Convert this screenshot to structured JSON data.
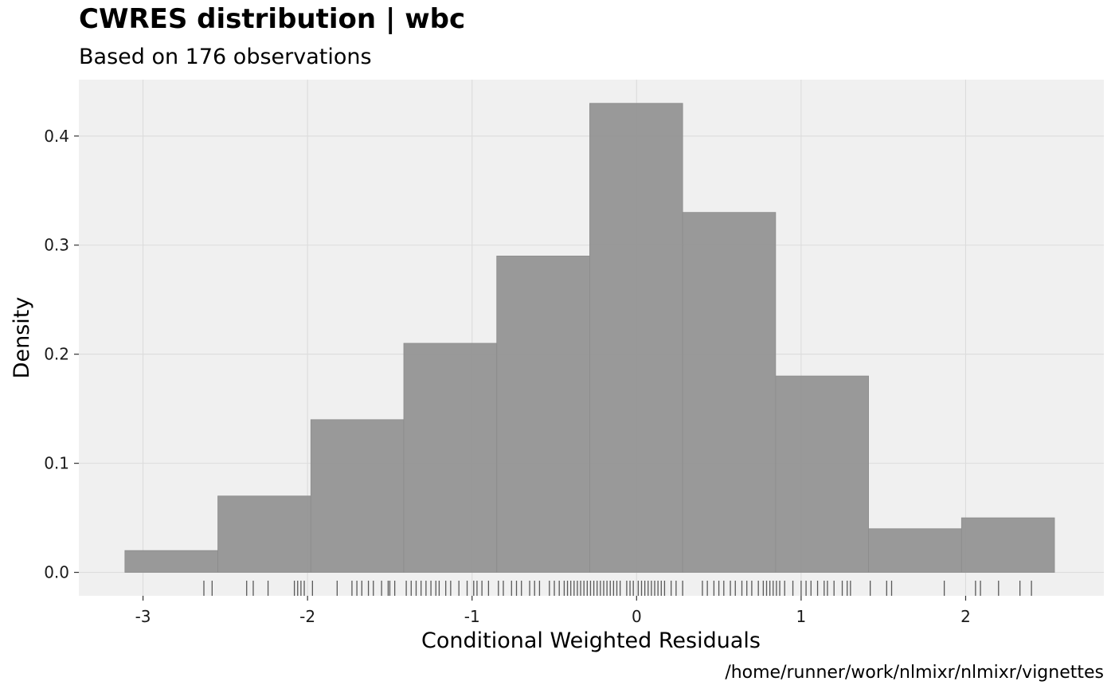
{
  "chart_data": {
    "type": "histogram",
    "title": "CWRES distribution | wbc",
    "subtitle": "Based on 176 observations",
    "xlabel": "Conditional Weighted Residuals",
    "ylabel": "Density",
    "caption": "/home/runner/work/nlmixr/nlmixr/vignettes",
    "xlim": [
      -3.39,
      2.84
    ],
    "ylim": [
      -0.0215,
      0.4517
    ],
    "x_ticks": [
      -3,
      -2,
      -1,
      0,
      1,
      2
    ],
    "x_tick_labels": [
      "-3",
      "-2",
      "-1",
      "0",
      "1",
      "2"
    ],
    "y_ticks": [
      0.0,
      0.1,
      0.2,
      0.3,
      0.4
    ],
    "y_tick_labels": [
      "0.0",
      "0.1",
      "0.2",
      "0.3",
      "0.4"
    ],
    "grid": true,
    "bins": [
      {
        "x0": -3.11,
        "x1": -2.545,
        "density": 0.02
      },
      {
        "x0": -2.545,
        "x1": -1.98,
        "density": 0.07
      },
      {
        "x0": -1.98,
        "x1": -1.415,
        "density": 0.14
      },
      {
        "x0": -1.415,
        "x1": -0.85,
        "density": 0.21
      },
      {
        "x0": -0.85,
        "x1": -0.285,
        "density": 0.29
      },
      {
        "x0": -0.285,
        "x1": 0.28,
        "density": 0.43
      },
      {
        "x0": 0.28,
        "x1": 0.845,
        "density": 0.33
      },
      {
        "x0": 0.845,
        "x1": 1.41,
        "density": 0.18
      },
      {
        "x0": 1.41,
        "x1": 1.975,
        "density": 0.04
      },
      {
        "x0": 1.975,
        "x1": 2.54,
        "density": 0.05
      }
    ],
    "rug": [
      -2.63,
      -2.58,
      -2.37,
      -2.33,
      -2.24,
      -2.08,
      -2.06,
      -2.04,
      -2.02,
      -1.97,
      -1.82,
      -1.73,
      -1.7,
      -1.67,
      -1.63,
      -1.6,
      -1.55,
      -1.51,
      -1.5,
      -1.47,
      -1.4,
      -1.37,
      -1.34,
      -1.31,
      -1.28,
      -1.25,
      -1.22,
      -1.2,
      -1.16,
      -1.13,
      -1.08,
      -1.03,
      -0.99,
      -0.97,
      -0.94,
      -0.9,
      -0.84,
      -0.81,
      -0.76,
      -0.73,
      -0.7,
      -0.65,
      -0.62,
      -0.59,
      -0.53,
      -0.5,
      -0.47,
      -0.44,
      -0.42,
      -0.4,
      -0.38,
      -0.36,
      -0.34,
      -0.32,
      -0.3,
      -0.28,
      -0.26,
      -0.24,
      -0.22,
      -0.2,
      -0.18,
      -0.16,
      -0.14,
      -0.12,
      -0.1,
      -0.06,
      -0.04,
      -0.02,
      0.01,
      0.03,
      0.05,
      0.07,
      0.09,
      0.11,
      0.13,
      0.15,
      0.17,
      0.21,
      0.24,
      0.28,
      0.4,
      0.43,
      0.47,
      0.5,
      0.53,
      0.57,
      0.6,
      0.64,
      0.67,
      0.7,
      0.74,
      0.77,
      0.79,
      0.81,
      0.83,
      0.85,
      0.87,
      0.9,
      0.95,
      1.0,
      1.03,
      1.06,
      1.1,
      1.14,
      1.16,
      1.2,
      1.25,
      1.28,
      1.3,
      1.42,
      1.52,
      1.55,
      1.87,
      2.06,
      2.09,
      2.2,
      2.33,
      2.4
    ],
    "colors": {
      "panel_background": "#f0f0f0",
      "grid": "#dcdcdc",
      "bar_fill": "#969696",
      "bar_stroke": "#8c8c8c",
      "rug": "#595959",
      "axis_tick": "#333333"
    }
  }
}
